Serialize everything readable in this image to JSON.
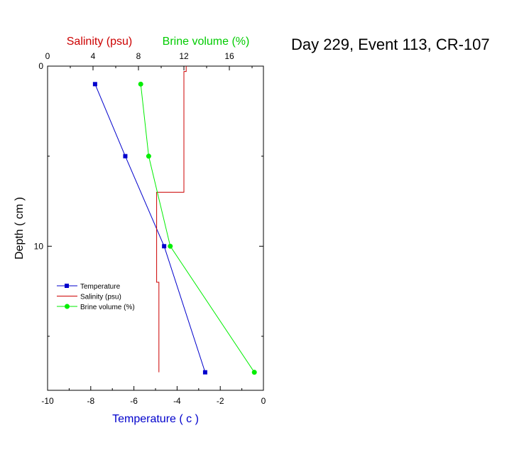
{
  "chart_data": {
    "type": "line",
    "title": "Day 229, Event 113, CR-107",
    "xlabel": "Temperature ( c )",
    "top_xlabel_1": "Salinity (psu)",
    "top_xlabel_2": "Brine volume (%)",
    "ylabel": "Depth ( cm )",
    "xlim": [
      -10,
      0
    ],
    "xticks": [
      -10,
      -8,
      -6,
      -4,
      -2,
      0
    ],
    "top_xlim": [
      0,
      19
    ],
    "top_xticks": [
      0,
      4,
      8,
      12,
      16
    ],
    "ylim": [
      0,
      18
    ],
    "yticks": [
      0,
      10
    ],
    "y_inverted": true,
    "legend_position": "lower-left",
    "series": [
      {
        "name": "Temperature",
        "axis": "bottom",
        "color": "#0000cc",
        "marker": "square",
        "x": [
          -7.8,
          -6.4,
          -4.6,
          -2.7
        ],
        "y": [
          1,
          5,
          10,
          17
        ]
      },
      {
        "name": "Salinity (psu)",
        "axis": "top",
        "color": "#cc0000",
        "marker": "none",
        "step": true,
        "x": [
          12.2,
          12.2,
          12.0,
          12.0,
          9.6,
          9.6,
          9.6,
          9.8,
          9.8
        ],
        "y": [
          0,
          0.3,
          0.3,
          7,
          7,
          10,
          12,
          12,
          17
        ]
      },
      {
        "name": "Brine volume (%)",
        "axis": "top",
        "color": "#00ee00",
        "marker": "circle",
        "x": [
          8.2,
          8.9,
          10.8,
          18.2
        ],
        "y": [
          1,
          5,
          10,
          17
        ]
      }
    ]
  }
}
